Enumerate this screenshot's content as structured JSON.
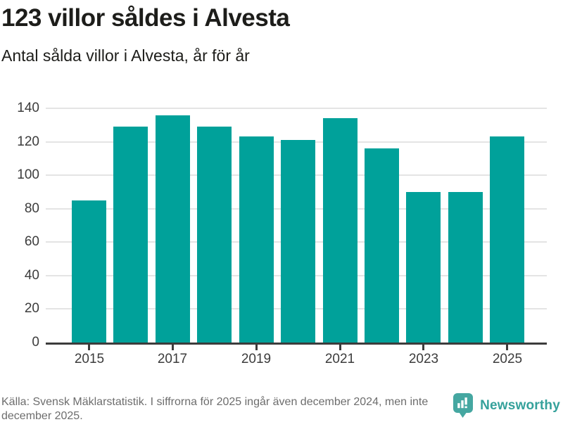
{
  "header": {
    "title": "123 villor såldes i Alvesta",
    "subtitle": "Antal sålda villor i Alvesta, år för år"
  },
  "chart_data": {
    "type": "bar",
    "title": "123 villor såldes i Alvesta",
    "subtitle": "Antal sålda villor i Alvesta, år för år",
    "categories": [
      "2015",
      "2016",
      "2017",
      "2018",
      "2019",
      "2020",
      "2021",
      "2022",
      "2023",
      "2024",
      "2025"
    ],
    "values": [
      85,
      129,
      136,
      129,
      123,
      121,
      134,
      116,
      90,
      90,
      123
    ],
    "xlabel": "",
    "ylabel": "",
    "ylim": [
      0,
      140
    ],
    "y_ticks": [
      0,
      20,
      40,
      60,
      80,
      100,
      120,
      140
    ],
    "x_tick_labels": [
      "2015",
      "2017",
      "2019",
      "2021",
      "2023",
      "2025"
    ],
    "grid": true,
    "legend": "none",
    "bar_color": "#00a19a"
  },
  "footer": {
    "source": "Källa: Svensk Mäklarstatistik. I siffrorna för 2025 ingår även december 2024, men inte december 2025."
  },
  "branding": {
    "name": "Newsworthy",
    "logo_color": "#45a7a1",
    "text_color": "#35a19b"
  }
}
